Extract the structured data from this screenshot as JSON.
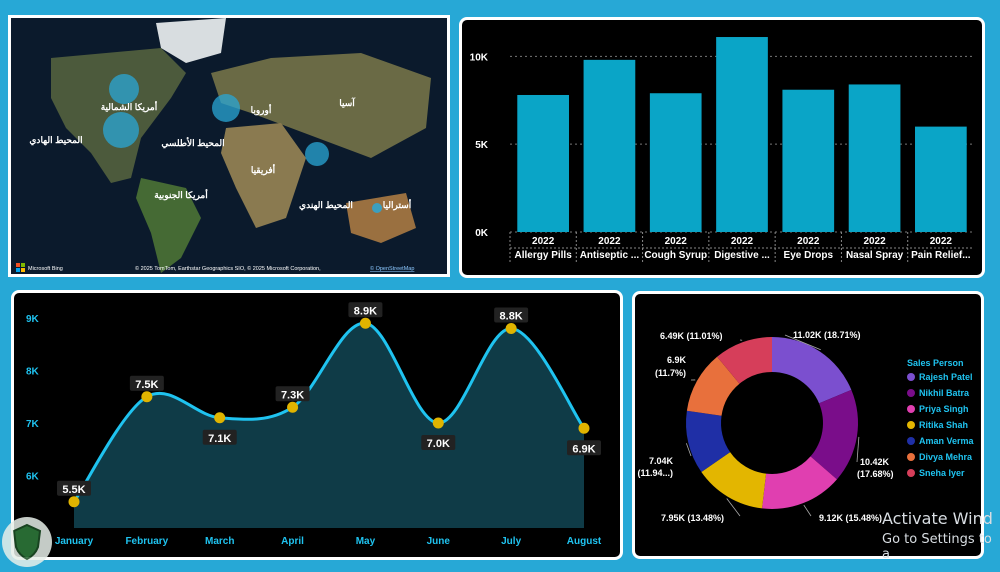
{
  "map": {
    "attribution": "© 2025 TomTom, Earthstar Geographics SIO, © 2025 Microsoft Corporation,",
    "attribution_link": "© OpenStreetMap",
    "logo": "Microsoft Bing",
    "labels": {
      "north_america": "أمريكا الشمالية",
      "south_america": "أمريكا الجنوبية",
      "europe": "أوروبا",
      "asia": "آسيا",
      "africa": "أفريقيا",
      "australia": "أستراليا",
      "pacific": "المحيط الهادي",
      "atlantic": "المحيط الأطلسي",
      "indian": "المحيط الهندي"
    }
  },
  "chart_data": [
    {
      "type": "bar",
      "categories": [
        "Allergy Pills",
        "Antiseptic ...",
        "Cough Syrup",
        "Digestive ...",
        "Eye Drops",
        "Nasal Spray",
        "Pain Relief..."
      ],
      "year_label": "2022",
      "values": [
        7800,
        9800,
        7900,
        11100,
        8100,
        8400,
        6000
      ],
      "yticks": [
        "0K",
        "5K",
        "10K"
      ],
      "ylim": [
        0,
        11500
      ],
      "color": "#0aa5c7"
    },
    {
      "type": "area",
      "categories": [
        "January",
        "February",
        "March",
        "April",
        "May",
        "June",
        "July",
        "August"
      ],
      "values": [
        5.5,
        7.5,
        7.1,
        7.3,
        8.9,
        7.0,
        8.8,
        6.9
      ],
      "data_labels": [
        "5.5K",
        "7.5K",
        "7.1K",
        "7.3K",
        "8.9K",
        "7.0K",
        "8.8K",
        "6.9K"
      ],
      "yticks": [
        "6K",
        "7K",
        "8K",
        "9K"
      ],
      "ylim": [
        5.0,
        9.0
      ],
      "line_color": "#1fc3f0",
      "marker_color": "#e0b400"
    },
    {
      "type": "pie",
      "legend_title": "Sales Person",
      "series": [
        {
          "name": "Rajesh Patel",
          "value": 11.02,
          "label": "11.02K (18.71%)",
          "color": "#7b4fcf"
        },
        {
          "name": "Nikhil Batra",
          "value": 10.42,
          "label": "10.42K (17.68%)",
          "color": "#7a0d8a"
        },
        {
          "name": "Priya Singh",
          "value": 9.12,
          "label": "9.12K (15.48%)",
          "color": "#e03fb0"
        },
        {
          "name": "Ritika Shah",
          "value": 7.95,
          "label": "7.95K (13.48%)",
          "color": "#e3b600"
        },
        {
          "name": "Aman Verma",
          "value": 7.04,
          "label": "7.04K (11.94...)",
          "color": "#1f2fa6"
        },
        {
          "name": "Divya Mehra",
          "value": 6.9,
          "label": "6.9K (11.7%)",
          "color": "#e8703c"
        },
        {
          "name": "Sneha Iyer",
          "value": 6.49,
          "label": "6.49K (11.01%)",
          "color": "#d63e5a"
        }
      ]
    }
  ],
  "watermark": {
    "line1": "Activate Wind",
    "line2": "Go to Settings to a"
  }
}
